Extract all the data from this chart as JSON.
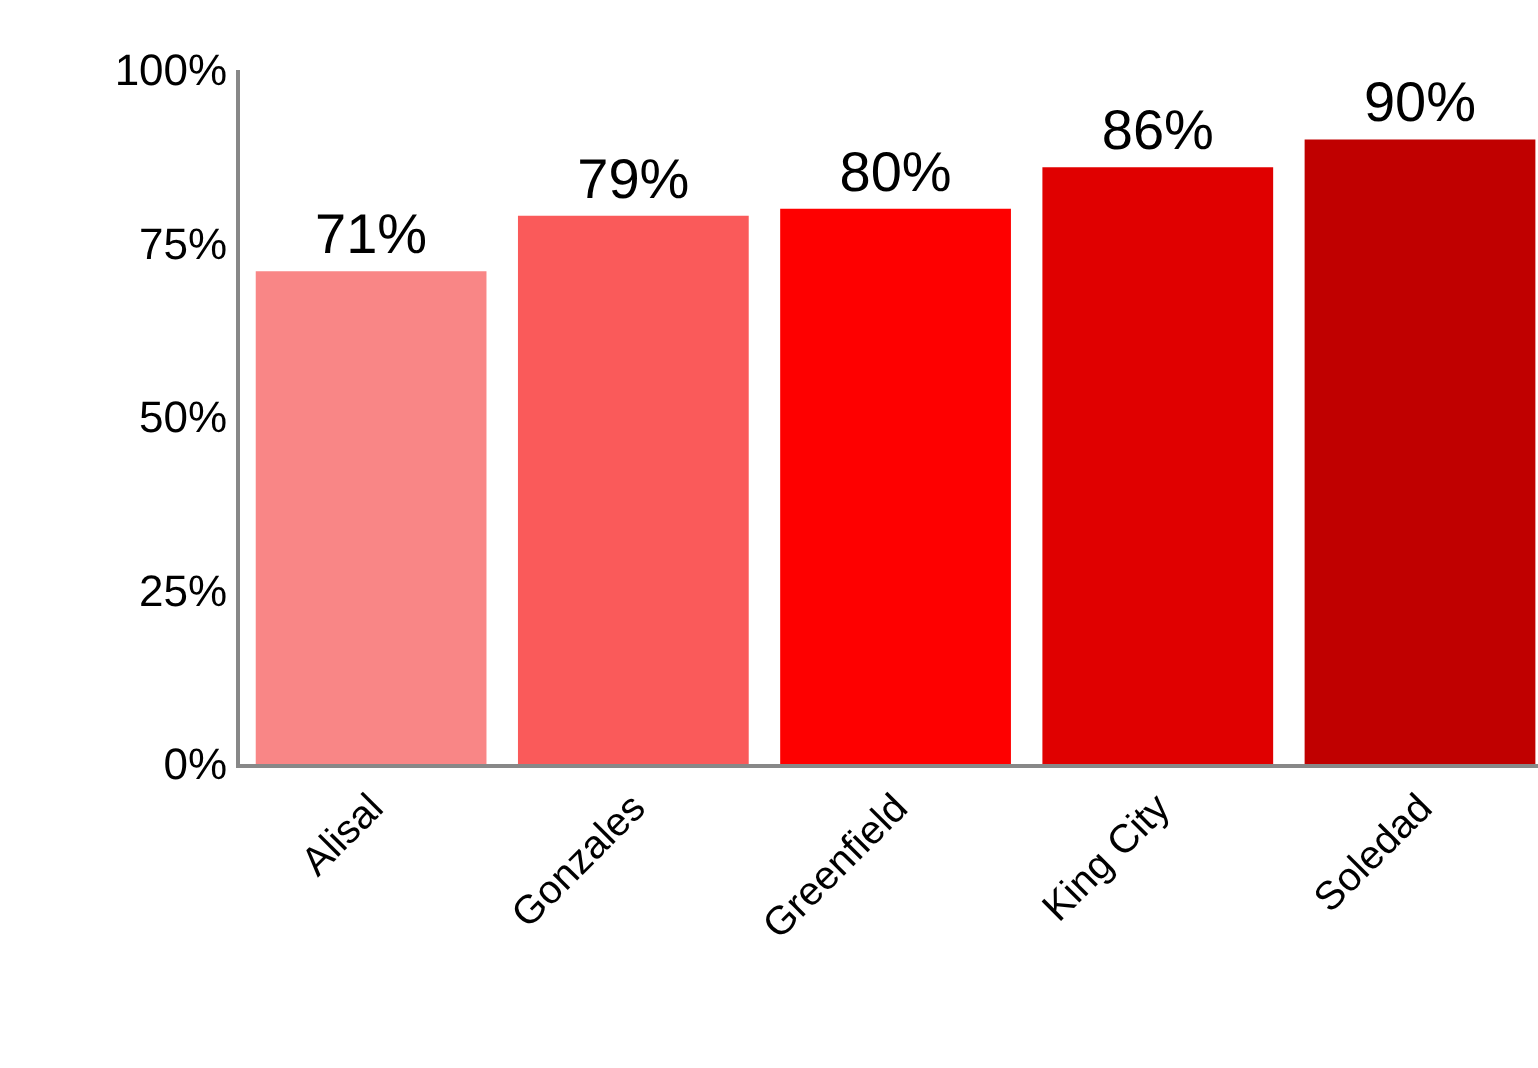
{
  "chart_data": {
    "type": "bar",
    "categories": [
      "Alisal",
      "Gonzales",
      "Greenfield",
      "King City",
      "Soledad"
    ],
    "values": [
      71,
      79,
      80,
      86,
      90
    ],
    "colors": [
      "#f98686",
      "#fa5a5a",
      "#fe0000",
      "#e00000",
      "#c00000"
    ],
    "value_labels": [
      "71%",
      "79%",
      "80%",
      "86%",
      "90%"
    ],
    "ylim": [
      0,
      100
    ],
    "yticks": [
      {
        "value": 0,
        "label": "0%"
      },
      {
        "value": 25,
        "label": "25%"
      },
      {
        "value": 50,
        "label": "50%"
      },
      {
        "value": 75,
        "label": "75%"
      },
      {
        "value": 100,
        "label": "100%"
      }
    ],
    "grid": false,
    "legend": false
  }
}
